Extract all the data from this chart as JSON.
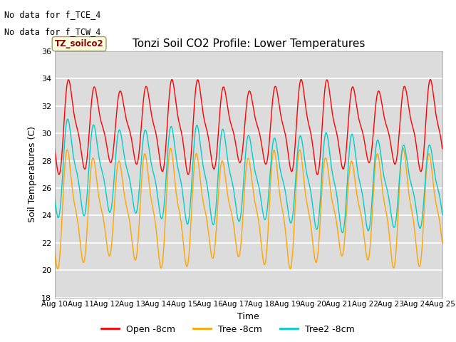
{
  "title": "Tonzi Soil CO2 Profile: Lower Temperatures",
  "xlabel": "Time",
  "ylabel": "Soil Temperatures (C)",
  "ylim": [
    18,
    36
  ],
  "xlim": [
    0,
    15
  ],
  "yticks": [
    18,
    20,
    22,
    24,
    26,
    28,
    30,
    32,
    34,
    36
  ],
  "xtick_labels": [
    "Aug 10",
    "Aug 11",
    "Aug 12",
    "Aug 13",
    "Aug 14",
    "Aug 15",
    "Aug 16",
    "Aug 17",
    "Aug 18",
    "Aug 19",
    "Aug 20",
    "Aug 21",
    "Aug 22",
    "Aug 23",
    "Aug 24",
    "Aug 25"
  ],
  "no_data_text": [
    "No data for f_TCE_4",
    "No data for f_TCW_4"
  ],
  "legend_box_text": "TZ_soilco2",
  "open_color": "#FF0000",
  "tree_color": "#FFA500",
  "tree2_color": "#00CCCC",
  "bg_color": "#DCDCDC",
  "fig_bg": "#FFFFFF",
  "open_label": "Open -8cm",
  "tree_label": "Tree -8cm",
  "tree2_label": "Tree2 -8cm",
  "n_points": 1440
}
